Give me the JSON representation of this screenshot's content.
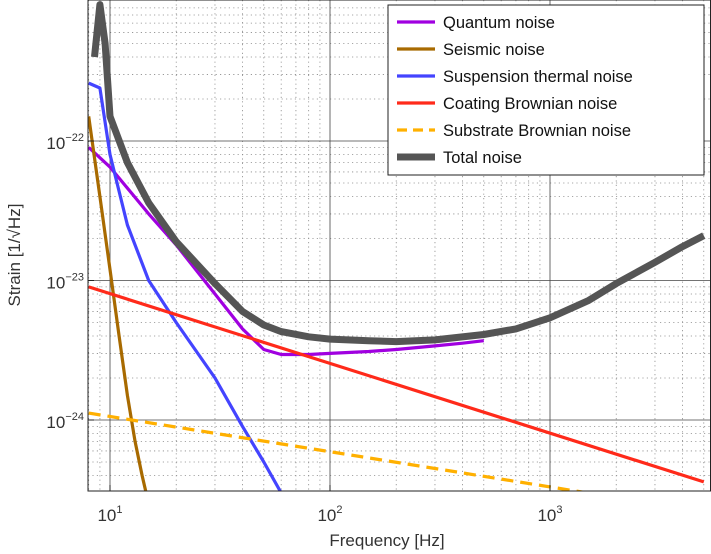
{
  "chart_data": {
    "type": "line",
    "title": "",
    "xlabel": "Frequency [Hz]",
    "ylabel": "Strain [1/√Hz]",
    "x_scale": "log",
    "y_scale": "log",
    "xlim": [
      8,
      5000
    ],
    "ylim": [
      3e-25,
      1e-21
    ],
    "x_ticks": [
      {
        "value": 10,
        "base": "10",
        "exp": "1"
      },
      {
        "value": 100,
        "base": "10",
        "exp": "2"
      },
      {
        "value": 1000,
        "base": "10",
        "exp": "3"
      }
    ],
    "y_ticks": [
      {
        "value": 1e-24,
        "base": "10",
        "exp": "−24"
      },
      {
        "value": 1e-23,
        "base": "10",
        "exp": "−23"
      },
      {
        "value": 1e-22,
        "base": "10",
        "exp": "−22"
      }
    ],
    "grid": true,
    "minor_grid": true,
    "legend_position": "top-right",
    "series": [
      {
        "name": "Quantum noise",
        "color": "#a000e0",
        "dash": "solid",
        "points": [
          [
            8,
            9e-23
          ],
          [
            10,
            6.5e-23
          ],
          [
            15,
            3e-23
          ],
          [
            20,
            1.8e-23
          ],
          [
            30,
            8e-24
          ],
          [
            40,
            4.5e-24
          ],
          [
            50,
            3.2e-24
          ],
          [
            60,
            2.95e-24
          ],
          [
            80,
            2.95e-24
          ],
          [
            100,
            3e-24
          ],
          [
            150,
            3.1e-24
          ],
          [
            200,
            3.2e-24
          ],
          [
            300,
            3.4e-24
          ],
          [
            400,
            3.55e-24
          ],
          [
            500,
            3.7e-24
          ]
        ]
      },
      {
        "name": "Seismic noise",
        "color": "#a86a00",
        "dash": "solid",
        "points": [
          [
            8,
            1.5e-22
          ],
          [
            9,
            4e-23
          ],
          [
            10,
            1.2e-23
          ],
          [
            11,
            4e-24
          ],
          [
            12,
            1.5e-24
          ],
          [
            13,
            7e-25
          ],
          [
            14,
            4e-25
          ],
          [
            15,
            2.5e-25
          ]
        ]
      },
      {
        "name": "Suspension thermal noise",
        "color": "#4444ff",
        "dash": "solid",
        "points": [
          [
            8,
            2.6e-22
          ],
          [
            9,
            2.4e-22
          ],
          [
            10,
            8e-23
          ],
          [
            12,
            2.5e-23
          ],
          [
            15,
            1e-23
          ],
          [
            20,
            5e-24
          ],
          [
            30,
            2e-24
          ],
          [
            40,
            9e-25
          ],
          [
            50,
            5e-25
          ],
          [
            60,
            3e-25
          ]
        ]
      },
      {
        "name": "Coating Brownian noise",
        "color": "#ff2a1a",
        "dash": "solid",
        "points": [
          [
            8,
            9e-24
          ],
          [
            5000,
            3.6e-25
          ]
        ]
      },
      {
        "name": "Substrate Brownian noise",
        "color": "#ffb000",
        "dash": "dashed",
        "points": [
          [
            8,
            1.12e-24
          ],
          [
            1700,
            2.9e-25
          ]
        ]
      },
      {
        "name": "Total noise",
        "color": "#555555",
        "dash": "solid",
        "points": [
          [
            8.5,
            4e-22
          ],
          [
            9,
            9.5e-22
          ],
          [
            9.5,
            5e-22
          ],
          [
            10,
            1.5e-22
          ],
          [
            12,
            7e-23
          ],
          [
            15,
            3.6e-23
          ],
          [
            20,
            1.9e-23
          ],
          [
            30,
            9.5e-24
          ],
          [
            40,
            6e-24
          ],
          [
            50,
            4.8e-24
          ],
          [
            60,
            4.3e-24
          ],
          [
            80,
            3.95e-24
          ],
          [
            100,
            3.8e-24
          ],
          [
            150,
            3.7e-24
          ],
          [
            200,
            3.65e-24
          ],
          [
            300,
            3.75e-24
          ],
          [
            500,
            4.1e-24
          ],
          [
            700,
            4.5e-24
          ],
          [
            1000,
            5.4e-24
          ],
          [
            1500,
            7.2e-24
          ],
          [
            2000,
            9.5e-24
          ],
          [
            3000,
            1.35e-23
          ],
          [
            4000,
            1.75e-23
          ],
          [
            5000,
            2.1e-23
          ]
        ]
      }
    ]
  }
}
